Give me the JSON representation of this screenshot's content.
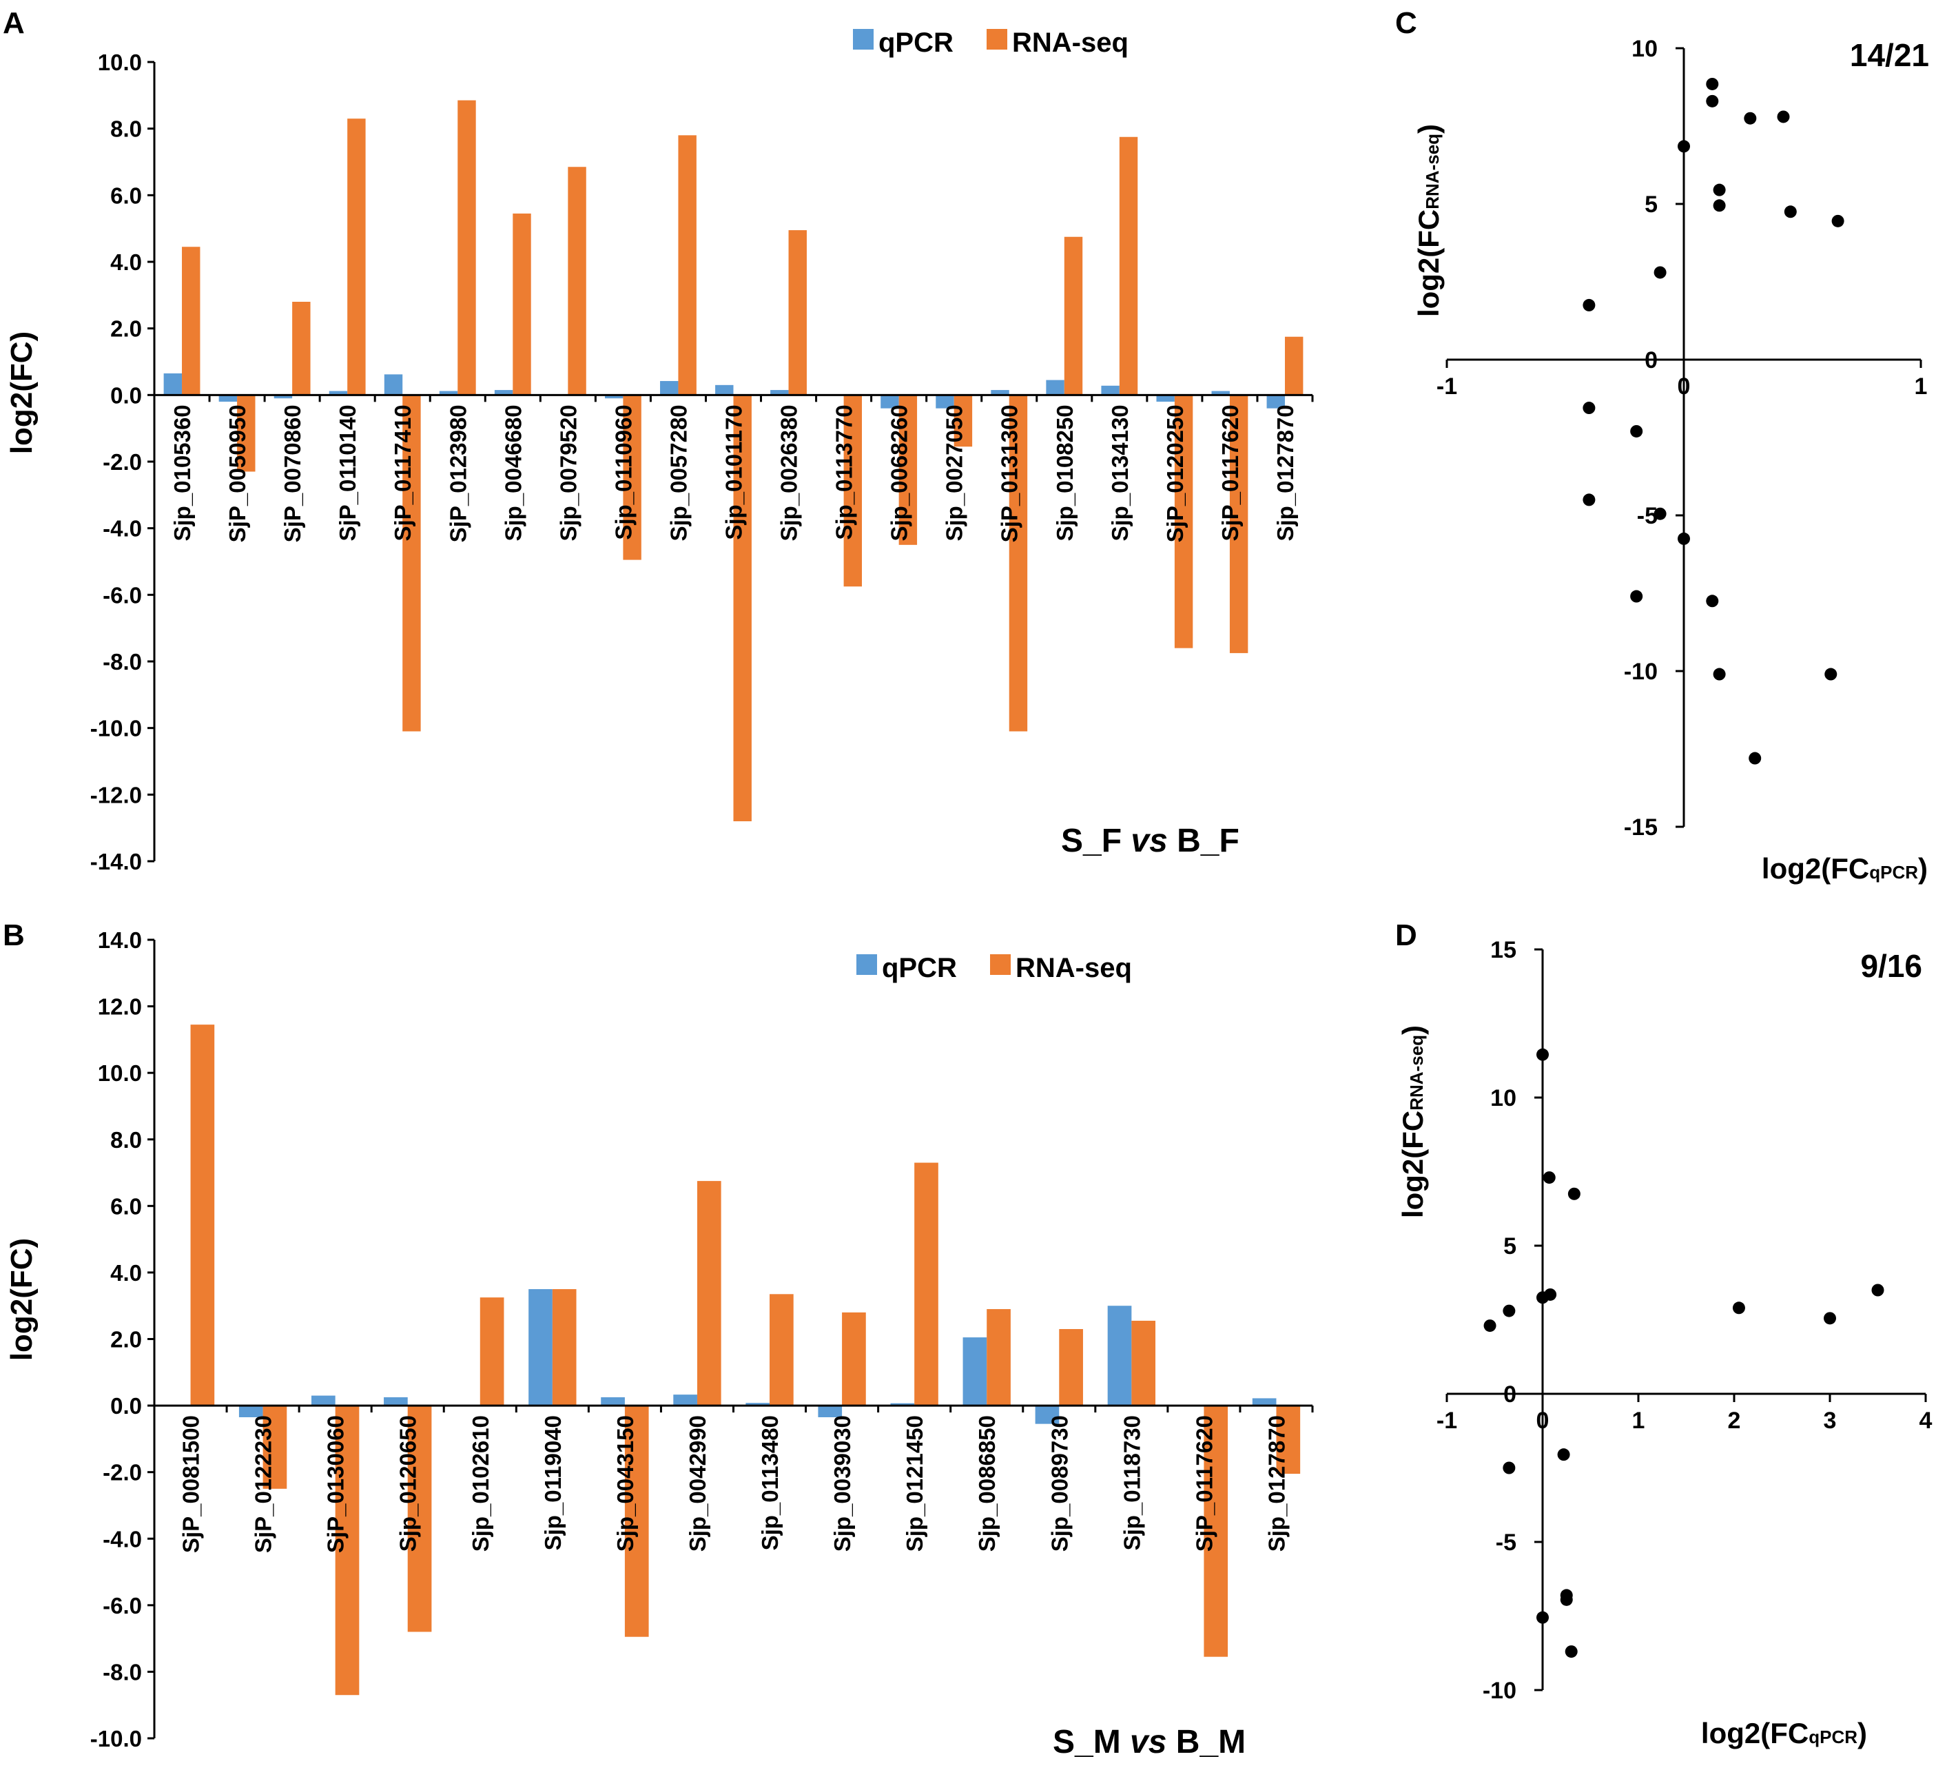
{
  "colors": {
    "qpcr": "#5b9bd5",
    "rnaseq": "#ed7d31",
    "point": "#000000"
  },
  "chart_data": [
    {
      "panel": "A",
      "type": "bar",
      "ylabel": "log2(FC)",
      "comparison": {
        "a": "S_F",
        "vs": "vs",
        "b": "B_F"
      },
      "ylim": [
        -14,
        10
      ],
      "yticks": [
        "10.0",
        "8.0",
        "6.0",
        "4.0",
        "2.0",
        "0.0",
        "-2.0",
        "-4.0",
        "-6.0",
        "-8.0",
        "-10.0",
        "-12.0",
        "-14.0"
      ],
      "categories": [
        "Sjp_0105360",
        "SjP_0050950",
        "SjP_0070860",
        "SjP_0110140",
        "SjP_0117410",
        "SjP_0123980",
        "Sjp_0046680",
        "Sjp_0079520",
        "Sjp_0110960",
        "Sjp_0057280",
        "Sjp_0101170",
        "Sjp_0026380",
        "Sjp_0113770",
        "Sjp_0068260",
        "Sjp_0027050",
        "SjP_0131300",
        "Sjp_0108250",
        "Sjp_0134130",
        "SjP_0120250",
        "SjP_0117620",
        "Sjp_0127870"
      ],
      "series": [
        {
          "name": "qPCR",
          "values": [
            0.65,
            -0.2,
            -0.1,
            0.12,
            0.62,
            0.12,
            0.15,
            0.0,
            -0.1,
            0.42,
            0.3,
            0.15,
            0.0,
            -0.4,
            -0.4,
            0.15,
            0.45,
            0.28,
            -0.2,
            0.12,
            -0.4
          ]
        },
        {
          "name": "RNA-seq",
          "values": [
            4.45,
            -2.3,
            2.8,
            8.3,
            -10.1,
            8.85,
            5.45,
            6.85,
            -4.95,
            7.8,
            -12.8,
            4.95,
            -5.75,
            -4.5,
            -1.55,
            -10.1,
            4.75,
            7.75,
            -7.6,
            -7.75,
            1.75
          ]
        }
      ]
    },
    {
      "panel": "B",
      "type": "bar",
      "ylabel": "log2(FC)",
      "comparison": {
        "a": "S_M",
        "vs": "vs",
        "b": "B_M"
      },
      "ylim": [
        -10,
        14
      ],
      "yticks": [
        "14.0",
        "12.0",
        "10.0",
        "8.0",
        "6.0",
        "4.0",
        "2.0",
        "0.0",
        "-2.0",
        "-4.0",
        "-6.0",
        "-8.0",
        "-10.0"
      ],
      "categories": [
        "SjP_0081500",
        "SjP_0122230",
        "SjP_0130060",
        "Sjp_0120650",
        "Sjp_0102610",
        "Sjp_0119040",
        "Sjp_0043150",
        "Sjp_0042990",
        "Sjp_0113480",
        "Sjp_0039030",
        "Sjp_0121450",
        "Sjp_0086850",
        "Sjp_0089730",
        "Sjp_0118730",
        "SjP_0117620",
        "Sjp_0127870"
      ],
      "series": [
        {
          "name": "qPCR",
          "values": [
            0.0,
            -0.35,
            0.3,
            0.25,
            0.0,
            3.5,
            0.25,
            0.33,
            0.08,
            -0.35,
            0.07,
            2.05,
            -0.55,
            3.0,
            0.0,
            0.22
          ]
        },
        {
          "name": "RNA-seq",
          "values": [
            11.45,
            -2.5,
            -8.7,
            -6.8,
            3.25,
            3.5,
            -6.95,
            6.75,
            3.35,
            2.8,
            7.3,
            2.9,
            2.3,
            2.55,
            -7.55,
            -2.05
          ]
        }
      ]
    },
    {
      "panel": "C",
      "type": "scatter",
      "ratio": "14/21",
      "xlabel": {
        "main": "log2(FC",
        "sub": "qPCR",
        "close": ")"
      },
      "ylabel": {
        "main": "log2(FC",
        "sub": "RNA-seq",
        "close": ")"
      },
      "xlim": [
        -1,
        1
      ],
      "ylim": [
        -15,
        10
      ],
      "xticks": [
        "-1",
        "0",
        "1"
      ],
      "yticks": [
        "10",
        "5",
        "0",
        "-5",
        "-10",
        "-15"
      ],
      "x": [
        0.65,
        -0.2,
        -0.1,
        0.12,
        0.62,
        0.12,
        0.15,
        0.0,
        -0.1,
        0.42,
        0.3,
        0.15,
        0.0,
        -0.4,
        -0.4,
        0.15,
        0.45,
        0.28,
        -0.2,
        0.12,
        -0.4
      ],
      "y": [
        4.45,
        -2.3,
        2.8,
        8.3,
        -10.1,
        8.85,
        5.45,
        6.85,
        -4.95,
        7.8,
        -12.8,
        4.95,
        -5.75,
        -4.5,
        -1.55,
        -10.1,
        4.75,
        7.75,
        -7.6,
        -7.75,
        1.75
      ]
    },
    {
      "panel": "D",
      "type": "scatter",
      "ratio": "9/16",
      "xlabel": {
        "main": "log2(FC",
        "sub": "qPCR",
        "close": ")"
      },
      "ylabel": {
        "main": "log2(FC",
        "sub": "RNA-seq",
        "close": ")"
      },
      "xlim": [
        -1,
        4
      ],
      "ylim": [
        -10,
        15
      ],
      "xticks": [
        "-1",
        "0",
        "1",
        "2",
        "3",
        "4"
      ],
      "yticks": [
        "15",
        "10",
        "5",
        "0",
        "-5",
        "-10"
      ],
      "x": [
        0.0,
        -0.35,
        0.3,
        0.25,
        0.0,
        3.5,
        0.25,
        0.33,
        0.08,
        -0.35,
        0.07,
        2.05,
        -0.55,
        3.0,
        0.0,
        0.22
      ],
      "y": [
        11.45,
        -2.5,
        -8.7,
        -6.8,
        3.25,
        3.5,
        -6.95,
        6.75,
        3.35,
        2.8,
        7.3,
        2.9,
        2.3,
        2.55,
        -7.55,
        -2.05
      ]
    }
  ]
}
